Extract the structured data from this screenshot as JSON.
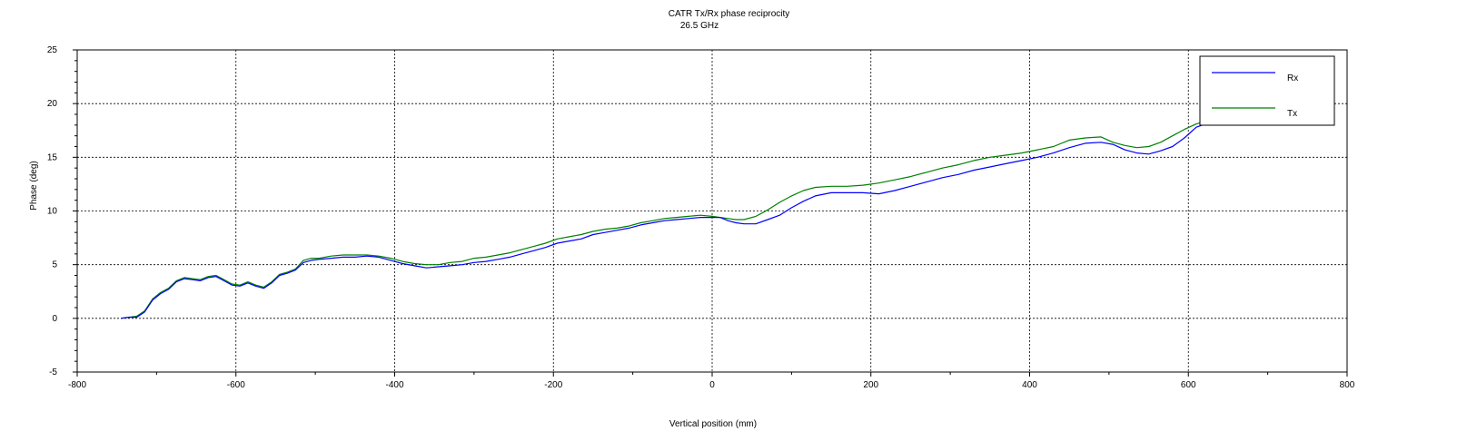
{
  "chart_data": {
    "type": "line",
    "title": "CATR Tx/Rx phase reciprocity",
    "subtitle": "26.5 GHz",
    "xlabel": "Vertical position (mm)",
    "ylabel": "Phase (deg)",
    "xlim": [
      -800,
      800
    ],
    "ylim": [
      -5,
      25
    ],
    "xticks": [
      -800,
      -600,
      -400,
      -200,
      0,
      200,
      400,
      600,
      800
    ],
    "yticks": [
      -5,
      0,
      5,
      10,
      15,
      20,
      25
    ],
    "grid": true,
    "legend_position": "top-right",
    "series": [
      {
        "name": "Rx",
        "color": "#0000ff",
        "x": [
          -745,
          -735,
          -725,
          -715,
          -705,
          -695,
          -685,
          -675,
          -665,
          -655,
          -645,
          -635,
          -625,
          -615,
          -605,
          -595,
          -585,
          -575,
          -565,
          -555,
          -545,
          -535,
          -525,
          -515,
          -505,
          -495,
          -480,
          -465,
          -450,
          -435,
          -420,
          -405,
          -390,
          -375,
          -360,
          -345,
          -330,
          -315,
          -300,
          -285,
          -270,
          -255,
          -240,
          -225,
          -210,
          -195,
          -180,
          -165,
          -150,
          -135,
          -120,
          -105,
          -90,
          -75,
          -60,
          -45,
          -30,
          -15,
          0,
          10,
          20,
          30,
          40,
          55,
          70,
          85,
          100,
          115,
          130,
          150,
          170,
          190,
          210,
          230,
          250,
          270,
          290,
          310,
          330,
          350,
          370,
          390,
          410,
          430,
          450,
          470,
          490,
          505,
          520,
          535,
          550,
          565,
          580,
          595,
          610,
          625
        ],
        "y": [
          0.0,
          0.1,
          0.1,
          0.6,
          1.7,
          2.3,
          2.7,
          3.4,
          3.7,
          3.6,
          3.5,
          3.8,
          3.9,
          3.5,
          3.1,
          3.0,
          3.3,
          3.0,
          2.8,
          3.3,
          4.0,
          4.2,
          4.5,
          5.2,
          5.4,
          5.5,
          5.6,
          5.7,
          5.7,
          5.8,
          5.7,
          5.4,
          5.1,
          4.9,
          4.7,
          4.8,
          4.9,
          5.0,
          5.2,
          5.3,
          5.5,
          5.7,
          6.0,
          6.3,
          6.6,
          7.0,
          7.2,
          7.4,
          7.8,
          8.0,
          8.2,
          8.4,
          8.7,
          8.9,
          9.1,
          9.2,
          9.3,
          9.4,
          9.4,
          9.4,
          9.1,
          8.9,
          8.8,
          8.8,
          9.2,
          9.6,
          10.3,
          10.9,
          11.4,
          11.7,
          11.7,
          11.7,
          11.6,
          11.9,
          12.3,
          12.7,
          13.1,
          13.4,
          13.8,
          14.1,
          14.4,
          14.7,
          15.0,
          15.4,
          15.9,
          16.3,
          16.4,
          16.2,
          15.7,
          15.4,
          15.3,
          15.6,
          16.0,
          16.8,
          17.8,
          18.2
        ]
      },
      {
        "name": "Tx",
        "color": "#008000",
        "x": [
          -745,
          -735,
          -725,
          -715,
          -705,
          -695,
          -685,
          -675,
          -665,
          -655,
          -645,
          -635,
          -625,
          -615,
          -605,
          -595,
          -585,
          -575,
          -565,
          -555,
          -545,
          -535,
          -525,
          -515,
          -505,
          -495,
          -480,
          -465,
          -450,
          -435,
          -420,
          -405,
          -390,
          -375,
          -360,
          -345,
          -330,
          -315,
          -300,
          -285,
          -270,
          -255,
          -240,
          -225,
          -210,
          -195,
          -180,
          -165,
          -150,
          -135,
          -120,
          -105,
          -90,
          -75,
          -60,
          -45,
          -30,
          -15,
          0,
          10,
          20,
          30,
          40,
          55,
          70,
          85,
          100,
          115,
          130,
          150,
          170,
          190,
          210,
          230,
          250,
          270,
          290,
          310,
          330,
          350,
          370,
          390,
          410,
          430,
          450,
          470,
          490,
          505,
          520,
          535,
          550,
          565,
          580,
          595,
          610,
          625
        ],
        "y": [
          0.0,
          0.1,
          0.2,
          0.7,
          1.8,
          2.4,
          2.8,
          3.5,
          3.8,
          3.7,
          3.6,
          3.9,
          4.0,
          3.6,
          3.2,
          3.1,
          3.4,
          3.1,
          2.9,
          3.4,
          4.1,
          4.3,
          4.6,
          5.4,
          5.6,
          5.6,
          5.8,
          5.9,
          5.9,
          5.9,
          5.8,
          5.6,
          5.3,
          5.1,
          5.0,
          5.0,
          5.2,
          5.3,
          5.6,
          5.7,
          5.9,
          6.1,
          6.4,
          6.7,
          7.0,
          7.4,
          7.6,
          7.8,
          8.1,
          8.3,
          8.4,
          8.6,
          8.9,
          9.1,
          9.3,
          9.4,
          9.5,
          9.6,
          9.5,
          9.4,
          9.3,
          9.2,
          9.2,
          9.5,
          10.1,
          10.8,
          11.4,
          11.9,
          12.2,
          12.3,
          12.3,
          12.4,
          12.6,
          12.9,
          13.2,
          13.6,
          14.0,
          14.3,
          14.7,
          15.0,
          15.2,
          15.4,
          15.7,
          16.0,
          16.6,
          16.8,
          16.9,
          16.4,
          16.1,
          15.9,
          16.0,
          16.4,
          17.0,
          17.6,
          18.1,
          18.4
        ]
      }
    ]
  }
}
